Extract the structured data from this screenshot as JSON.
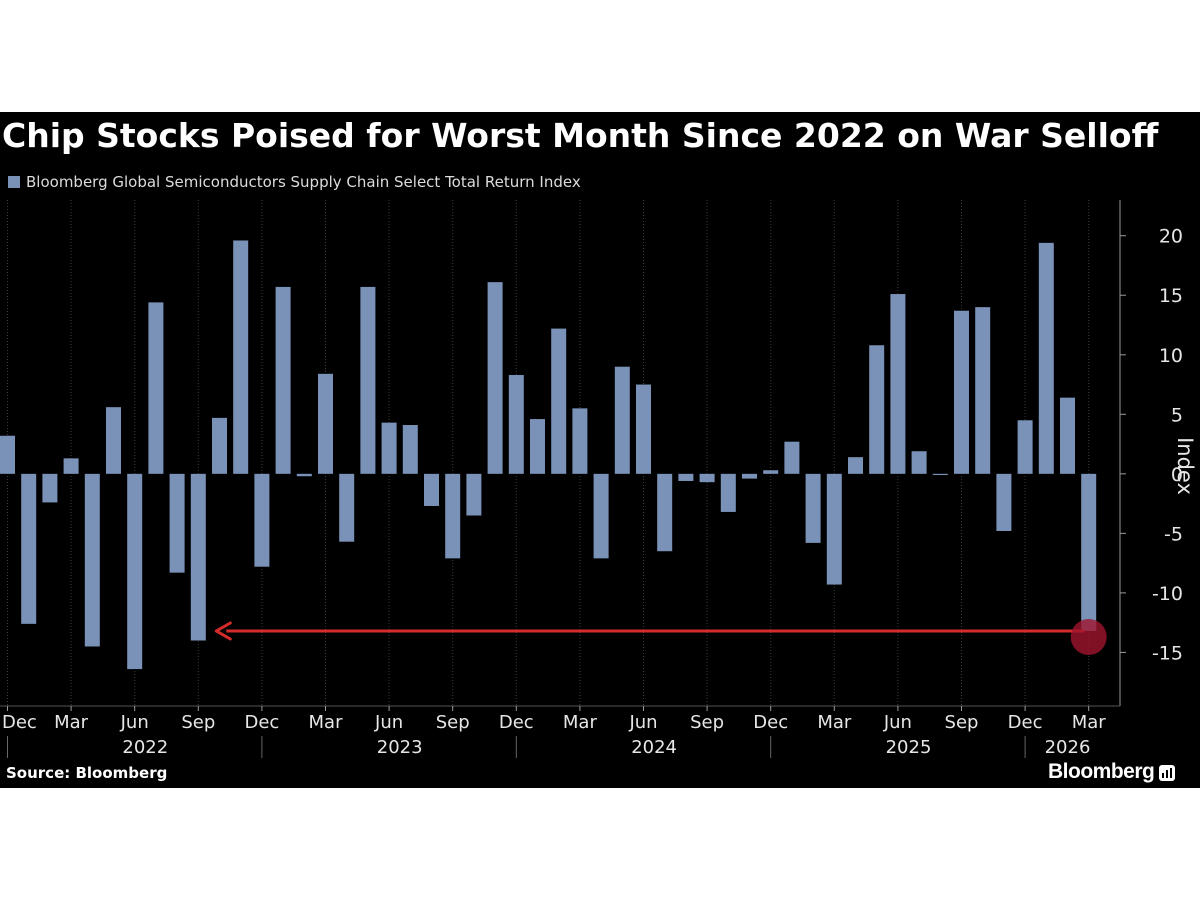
{
  "chart_data": {
    "type": "bar",
    "title": "Chip Stocks Poised for Worst Month Since 2022 on War Selloff",
    "series": [
      {
        "name": "Bloomberg Global Semiconductors Supply Chain Select Total Return Index",
        "color": "#7a92b8",
        "values": [
          3.2,
          -12.6,
          -2.4,
          1.3,
          -14.5,
          5.6,
          -16.4,
          14.4,
          -8.3,
          -14.0,
          4.7,
          19.6,
          -7.8,
          15.7,
          -0.2,
          8.4,
          -5.7,
          15.7,
          4.3,
          4.1,
          -2.7,
          -7.1,
          -3.5,
          16.1,
          8.3,
          4.6,
          12.2,
          5.5,
          -7.1,
          9.0,
          7.5,
          -6.5,
          -0.6,
          -0.7,
          -3.2,
          -0.4,
          0.3,
          2.7,
          -5.8,
          -9.3,
          1.4,
          10.8,
          15.1,
          1.9,
          -0.1,
          13.7,
          14.0,
          -4.8,
          4.5,
          19.4,
          6.4,
          -13.2
        ]
      }
    ],
    "categories": [
      "Dec 2021",
      "Jan 2022",
      "Feb 2022",
      "Mar 2022",
      "Apr 2022",
      "May 2022",
      "Jun 2022",
      "Jul 2022",
      "Aug 2022",
      "Sep 2022",
      "Oct 2022",
      "Nov 2022",
      "Dec 2022",
      "Jan 2023",
      "Feb 2023",
      "Mar 2023",
      "Apr 2023",
      "May 2023",
      "Jun 2023",
      "Jul 2023",
      "Aug 2023",
      "Sep 2023",
      "Oct 2023",
      "Nov 2023",
      "Dec 2023",
      "Jan 2024",
      "Feb 2024",
      "Mar 2024",
      "Apr 2024",
      "May 2024",
      "Jun 2024",
      "Jul 2024",
      "Aug 2024",
      "Sep 2024",
      "Oct 2024",
      "Nov 2024",
      "Dec 2024",
      "Jan 2025",
      "Feb 2025",
      "Mar 2025",
      "Apr 2025",
      "May 2025",
      "Jun 2025",
      "Jul 2025",
      "Aug 2025",
      "Sep 2025",
      "Oct 2025",
      "Nov 2025",
      "Dec 2025",
      "Jan 2026",
      "Feb 2026",
      "Mar 2026"
    ],
    "x_tick_labels": [
      {
        "index": 0,
        "label": "Dec"
      },
      {
        "index": 3,
        "label": "Mar"
      },
      {
        "index": 6,
        "label": "Jun"
      },
      {
        "index": 9,
        "label": "Sep"
      },
      {
        "index": 12,
        "label": "Dec"
      },
      {
        "index": 15,
        "label": "Mar"
      },
      {
        "index": 18,
        "label": "Jun"
      },
      {
        "index": 21,
        "label": "Sep"
      },
      {
        "index": 24,
        "label": "Dec"
      },
      {
        "index": 27,
        "label": "Mar"
      },
      {
        "index": 30,
        "label": "Jun"
      },
      {
        "index": 33,
        "label": "Sep"
      },
      {
        "index": 36,
        "label": "Dec"
      },
      {
        "index": 39,
        "label": "Mar"
      },
      {
        "index": 42,
        "label": "Jun"
      },
      {
        "index": 45,
        "label": "Sep"
      },
      {
        "index": 48,
        "label": "Dec"
      },
      {
        "index": 51,
        "label": "Mar"
      }
    ],
    "year_labels": [
      {
        "label": "2022",
        "first_index": 1,
        "last_index": 12
      },
      {
        "label": "2023",
        "first_index": 13,
        "last_index": 24
      },
      {
        "label": "2024",
        "first_index": 25,
        "last_index": 36
      },
      {
        "label": "2025",
        "first_index": 37,
        "last_index": 48
      },
      {
        "label": "2026",
        "first_index": 49,
        "last_index": 51
      }
    ],
    "y_ticks": [
      -15,
      -10,
      -5,
      0,
      5,
      10,
      15,
      20
    ],
    "ylim": [
      -19.5,
      23
    ],
    "ylabel": "Index",
    "xlabel": "",
    "grid": "vertical dotted",
    "annotation": {
      "type": "arrow",
      "from_index": 51,
      "to_index": 9,
      "value": -13.2,
      "arrow_color": "#d42b2b",
      "marker_color": "#a0142d",
      "description": "Worst month since Sep 2022"
    }
  },
  "footer": {
    "source": "Source: Bloomberg",
    "brand": "Bloomberg"
  },
  "colors": {
    "background": "#000000",
    "bar": "#7a92b8",
    "grid": "#3a3a3a",
    "text": "#ffffff",
    "axis_text": "#e6e6e6"
  }
}
